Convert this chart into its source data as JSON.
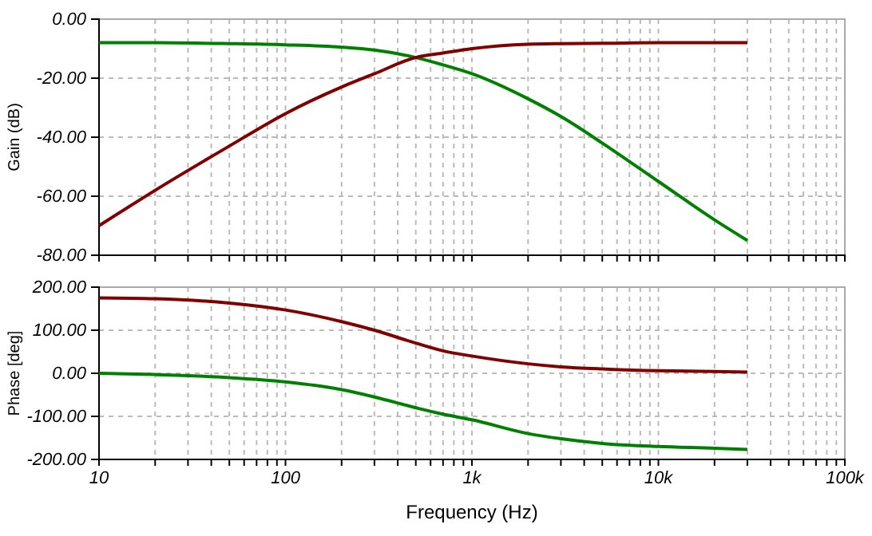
{
  "chart_data": [
    {
      "type": "line",
      "ylabel": "Gain (dB)",
      "log": "x",
      "grid": true,
      "tick_labels": "y",
      "xlim": [
        10,
        100000
      ],
      "ylim": [
        -80,
        0
      ],
      "xticks": [
        {
          "value": 10,
          "label": null
        },
        {
          "value": 20,
          "label": null
        },
        {
          "value": 30,
          "label": null
        },
        {
          "value": 40,
          "label": null
        },
        {
          "value": 50,
          "label": null
        },
        {
          "value": 60,
          "label": null
        },
        {
          "value": 70,
          "label": null
        },
        {
          "value": 80,
          "label": null
        },
        {
          "value": 90,
          "label": null
        },
        {
          "value": 100,
          "label": null
        },
        {
          "value": 200,
          "label": null
        },
        {
          "value": 300,
          "label": null
        },
        {
          "value": 400,
          "label": null
        },
        {
          "value": 500,
          "label": null
        },
        {
          "value": 600,
          "label": null
        },
        {
          "value": 700,
          "label": null
        },
        {
          "value": 800,
          "label": null
        },
        {
          "value": 900,
          "label": null
        },
        {
          "value": 1000,
          "label": null
        },
        {
          "value": 2000,
          "label": null
        },
        {
          "value": 3000,
          "label": null
        },
        {
          "value": 4000,
          "label": null
        },
        {
          "value": 5000,
          "label": null
        },
        {
          "value": 6000,
          "label": null
        },
        {
          "value": 7000,
          "label": null
        },
        {
          "value": 8000,
          "label": null
        },
        {
          "value": 9000,
          "label": null
        },
        {
          "value": 10000,
          "label": null
        },
        {
          "value": 20000,
          "label": null
        },
        {
          "value": 30000,
          "label": null
        },
        {
          "value": 40000,
          "label": null
        },
        {
          "value": 50000,
          "label": null
        },
        {
          "value": 60000,
          "label": null
        },
        {
          "value": 70000,
          "label": null
        },
        {
          "value": 80000,
          "label": null
        },
        {
          "value": 90000,
          "label": null
        },
        {
          "value": 100000,
          "label": null
        }
      ],
      "yticks": [
        {
          "value": -80,
          "label": "-80.00"
        },
        {
          "value": -60,
          "label": "-60.00"
        },
        {
          "value": -40,
          "label": "-40.00"
        },
        {
          "value": -20,
          "label": "-20.00"
        },
        {
          "value": 0,
          "label": "0.00"
        }
      ],
      "x": [
        10,
        20,
        50,
        100,
        200,
        300,
        500,
        700,
        1000,
        2000,
        3000,
        5000,
        10000,
        20000,
        30000
      ],
      "series": [
        {
          "color": "#008000",
          "values": [
            -8,
            -8,
            -8.3,
            -8.7,
            -9.5,
            -10.5,
            -13,
            -15.5,
            -18.5,
            -27,
            -33,
            -42,
            -55,
            -68,
            -75
          ]
        },
        {
          "color": "#800000",
          "values": [
            -70,
            -58,
            -43,
            -32,
            -23,
            -18.5,
            -13,
            -11.5,
            -10,
            -8.5,
            -8.3,
            -8.2,
            -8,
            -8,
            -8
          ]
        }
      ]
    },
    {
      "type": "line",
      "ylabel": "Phase [deg]",
      "xlabel": "Frequency (Hz)",
      "log": "x",
      "grid": true,
      "xlim": [
        10,
        100000
      ],
      "ylim": [
        -200,
        200
      ],
      "xticks": [
        {
          "value": 10,
          "label": "10"
        },
        {
          "value": 20,
          "label": null
        },
        {
          "value": 30,
          "label": null
        },
        {
          "value": 40,
          "label": null
        },
        {
          "value": 50,
          "label": null
        },
        {
          "value": 60,
          "label": null
        },
        {
          "value": 70,
          "label": null
        },
        {
          "value": 80,
          "label": null
        },
        {
          "value": 90,
          "label": null
        },
        {
          "value": 100,
          "label": "100"
        },
        {
          "value": 200,
          "label": null
        },
        {
          "value": 300,
          "label": null
        },
        {
          "value": 400,
          "label": null
        },
        {
          "value": 500,
          "label": null
        },
        {
          "value": 600,
          "label": null
        },
        {
          "value": 700,
          "label": null
        },
        {
          "value": 800,
          "label": null
        },
        {
          "value": 900,
          "label": null
        },
        {
          "value": 1000,
          "label": "1k"
        },
        {
          "value": 2000,
          "label": null
        },
        {
          "value": 3000,
          "label": null
        },
        {
          "value": 4000,
          "label": null
        },
        {
          "value": 5000,
          "label": null
        },
        {
          "value": 6000,
          "label": null
        },
        {
          "value": 7000,
          "label": null
        },
        {
          "value": 8000,
          "label": null
        },
        {
          "value": 9000,
          "label": null
        },
        {
          "value": 10000,
          "label": "10k"
        },
        {
          "value": 20000,
          "label": null
        },
        {
          "value": 30000,
          "label": null
        },
        {
          "value": 40000,
          "label": null
        },
        {
          "value": 50000,
          "label": null
        },
        {
          "value": 60000,
          "label": null
        },
        {
          "value": 70000,
          "label": null
        },
        {
          "value": 80000,
          "label": null
        },
        {
          "value": 90000,
          "label": null
        },
        {
          "value": 100000,
          "label": "100k"
        }
      ],
      "yticks": [
        {
          "value": -200,
          "label": "-200.00"
        },
        {
          "value": -100,
          "label": "-100.00"
        },
        {
          "value": 0,
          "label": "0.00"
        },
        {
          "value": 100,
          "label": "100.00"
        },
        {
          "value": 200,
          "label": "200.00"
        }
      ],
      "x": [
        10,
        20,
        50,
        100,
        200,
        300,
        500,
        700,
        1000,
        2000,
        3000,
        5000,
        10000,
        20000,
        30000
      ],
      "series": [
        {
          "color": "#800000",
          "values": [
            175,
            173,
            163,
            147,
            120,
            100,
            70,
            52,
            40,
            22,
            15,
            10,
            6,
            4,
            3
          ]
        },
        {
          "color": "#008000",
          "values": [
            0,
            -3,
            -10,
            -20,
            -38,
            -55,
            -80,
            -95,
            -108,
            -140,
            -152,
            -163,
            -170,
            -174,
            -177
          ]
        }
      ]
    }
  ]
}
